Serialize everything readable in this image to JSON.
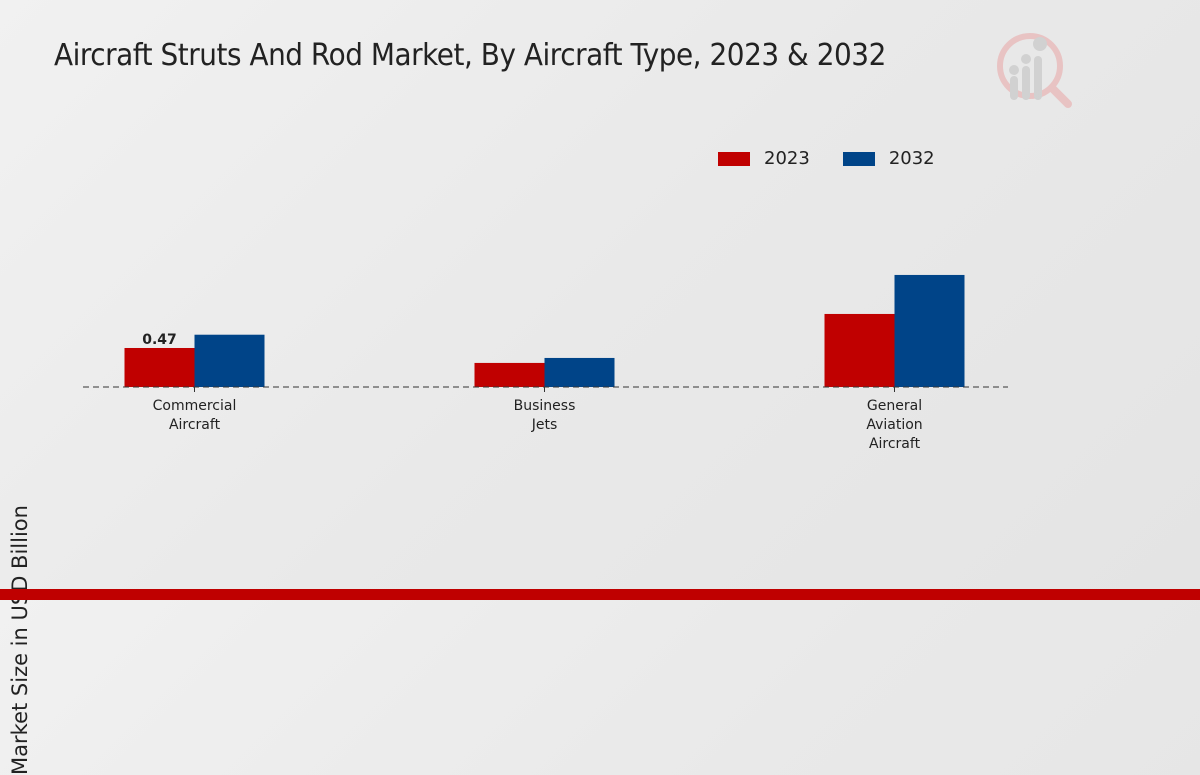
{
  "chart_data": {
    "type": "bar",
    "title": "Aircraft Struts And Rod Market, By Aircraft Type, 2023 & 2032",
    "xlabel": "",
    "ylabel": "Market Size in USD Billion",
    "categories": [
      [
        "Commercial",
        "Aircraft"
      ],
      [
        "Business",
        "Jets"
      ],
      [
        "General",
        "Aviation",
        "Aircraft"
      ]
    ],
    "series": [
      {
        "name": "2023",
        "color": "#c00000",
        "values": [
          0.47,
          0.29,
          0.88
        ]
      },
      {
        "name": "2032",
        "color": "#004488",
        "values": [
          0.63,
          0.35,
          1.35
        ]
      }
    ],
    "data_labels": [
      {
        "series": 0,
        "category": 0,
        "text": "0.47"
      }
    ],
    "ylim": [
      0,
      2.5
    ],
    "grid": false,
    "legend_position": "top-right"
  },
  "branding": {
    "logo_icon": "magnifier-bar-chart-logo",
    "footer_color": "#bf0000"
  }
}
